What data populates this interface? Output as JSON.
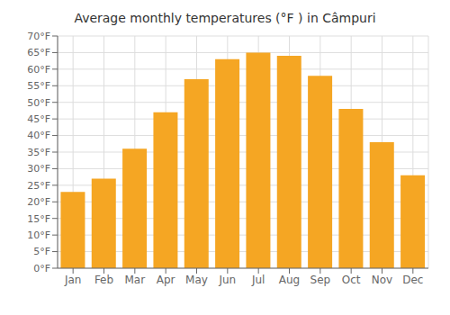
{
  "chart_data": {
    "type": "bar",
    "title": "Average monthly temperatures (°F ) in Câmpuri",
    "categories": [
      "Jan",
      "Feb",
      "Mar",
      "Apr",
      "May",
      "Jun",
      "Jul",
      "Aug",
      "Sep",
      "Oct",
      "Nov",
      "Dec"
    ],
    "values": [
      23,
      27,
      36,
      47,
      57,
      63,
      65,
      64,
      58,
      48,
      38,
      28
    ],
    "color": "#F5A623",
    "ylim": [
      0,
      70
    ],
    "yticks": [
      {
        "value": 0,
        "label": "0°F"
      },
      {
        "value": 5,
        "label": "5°F"
      },
      {
        "value": 10,
        "label": "10°F"
      },
      {
        "value": 15,
        "label": "15°F"
      },
      {
        "value": 20,
        "label": "20°F"
      },
      {
        "value": 25,
        "label": "25°F"
      },
      {
        "value": 30,
        "label": "30°F"
      },
      {
        "value": 35,
        "label": "35°F"
      },
      {
        "value": 40,
        "label": "40°F"
      },
      {
        "value": 45,
        "label": "45°F"
      },
      {
        "value": 50,
        "label": "50°F"
      },
      {
        "value": 55,
        "label": "55°F"
      },
      {
        "value": 60,
        "label": "60°F"
      },
      {
        "value": 65,
        "label": "65°F"
      },
      {
        "value": 70,
        "label": "70°F"
      }
    ],
    "grid": true
  }
}
